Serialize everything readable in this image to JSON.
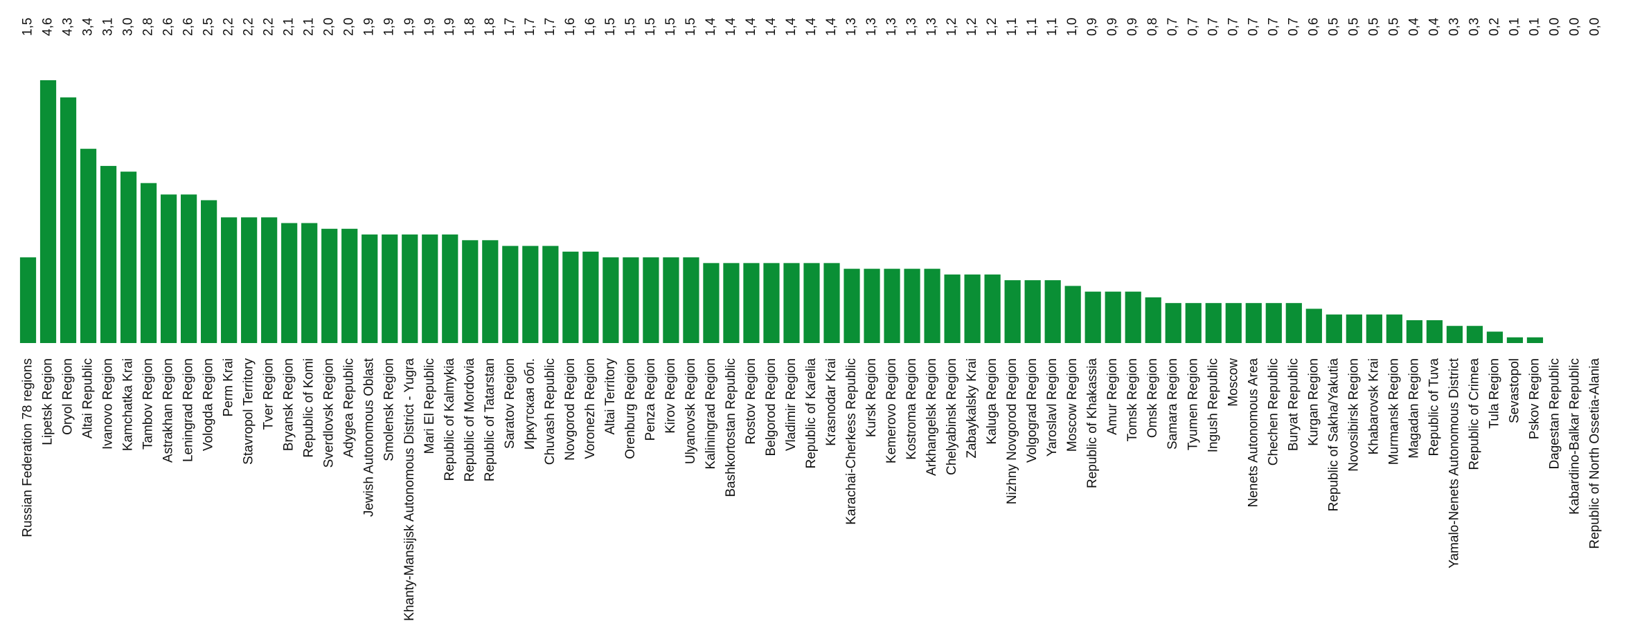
{
  "chart_data": {
    "type": "bar",
    "color": "#0a8f35",
    "categories": [
      "Russian Federation 78 regions",
      "Lipetsk Region",
      "Oryol Region",
      "Altai Republic",
      "Ivanovo Region",
      "Kamchatka Krai",
      "Tambov Region",
      "Astrakhan Region",
      "Leningrad Region",
      "Vologda Region",
      "Perm Krai",
      "Stavropol Territory",
      "Tver Region",
      "Bryansk Region",
      "Republic of Komi",
      "Sverdlovsk Region",
      "Adygea Republic",
      "Jewish Autonomous Oblast",
      "Smolensk Region",
      "Khanty-Mansijsk Autonomous District - Yugra",
      "Mari El Republic",
      "Republic of Kalmykia",
      "Republic of Mordovia",
      "Republic of Tatarstan",
      "Saratov Region",
      "Иркутская обл.",
      "Chuvash Republic",
      "Novgorod Region",
      "Voronezh Region",
      "Altai Territory",
      "Orenburg Region",
      "Penza Region",
      "Kirov Region",
      "Ulyanovsk Region",
      "Kaliningrad Region",
      "Bashkortostan Republic",
      "Rostov Region",
      "Belgorod Region",
      "Vladimir Region",
      "Republic of Karelia",
      "Krasnodar Krai",
      "Karachai-Cherkess Republic",
      "Kursk Region",
      "Kemerovo Region",
      "Kostroma Region",
      "Arkhangelsk Region",
      "Chelyabinsk Region",
      "Zabaykalsky Krai",
      "Kaluga Region",
      "Nizhny Novgorod Region",
      "Volgograd Region",
      "Yaroslavl Region",
      "Moscow Region",
      "Republic of Khakassia",
      "Amur Region",
      "Tomsk Region",
      "Omsk Region",
      "Samara Region",
      "Tyumen Region",
      "Ingush Republic",
      "Moscow",
      "Nenets Autonomous Area",
      "Chechen Republic",
      "Buryat Republic",
      "Kurgan Region",
      "Republic of Sakha/Yakutia",
      "Novosibirsk Region",
      "Khabarovsk Krai",
      "Murmansk Region",
      "Magadan Region",
      "Republic of Tuva",
      "Yamalo-Nenets Autonomous District",
      "Republic of Crimea",
      "Tula Region",
      "Sevastopol",
      "Pskov Region",
      "Dagestan Republic",
      "Kabardino-Balkar Republic",
      "Republic of North Ossetia-Alania"
    ],
    "values": [
      1.5,
      4.6,
      4.3,
      3.4,
      3.1,
      3.0,
      2.8,
      2.6,
      2.6,
      2.5,
      2.2,
      2.2,
      2.2,
      2.1,
      2.1,
      2.0,
      2.0,
      1.9,
      1.9,
      1.9,
      1.9,
      1.9,
      1.8,
      1.8,
      1.7,
      1.7,
      1.7,
      1.6,
      1.6,
      1.5,
      1.5,
      1.5,
      1.5,
      1.5,
      1.4,
      1.4,
      1.4,
      1.4,
      1.4,
      1.4,
      1.4,
      1.3,
      1.3,
      1.3,
      1.3,
      1.3,
      1.2,
      1.2,
      1.2,
      1.1,
      1.1,
      1.1,
      1.0,
      0.9,
      0.9,
      0.9,
      0.8,
      0.7,
      0.7,
      0.7,
      0.7,
      0.7,
      0.7,
      0.7,
      0.6,
      0.5,
      0.5,
      0.5,
      0.5,
      0.4,
      0.4,
      0.3,
      0.3,
      0.2,
      0.1,
      0.1,
      0.0,
      0.0,
      0.0
    ],
    "value_labels": [
      "1,5",
      "4,6",
      "4,3",
      "3,4",
      "3,1",
      "3,0",
      "2,8",
      "2,6",
      "2,6",
      "2,5",
      "2,2",
      "2,2",
      "2,2",
      "2,1",
      "2,1",
      "2,0",
      "2,0",
      "1,9",
      "1,9",
      "1,9",
      "1,9",
      "1,9",
      "1,8",
      "1,8",
      "1,7",
      "1,7",
      "1,7",
      "1,6",
      "1,6",
      "1,5",
      "1,5",
      "1,5",
      "1,5",
      "1,5",
      "1,4",
      "1,4",
      "1,4",
      "1,4",
      "1,4",
      "1,4",
      "1,4",
      "1,3",
      "1,3",
      "1,3",
      "1,3",
      "1,3",
      "1,2",
      "1,2",
      "1,2",
      "1,1",
      "1,1",
      "1,1",
      "1,0",
      "0,9",
      "0,9",
      "0,9",
      "0,8",
      "0,7",
      "0,7",
      "0,7",
      "0,7",
      "0,7",
      "0,7",
      "0,7",
      "0,6",
      "0,5",
      "0,5",
      "0,5",
      "0,5",
      "0,4",
      "0,4",
      "0,3",
      "0,3",
      "0,2",
      "0,1",
      "0,1",
      "0,0",
      "0,0",
      "0,0"
    ]
  }
}
